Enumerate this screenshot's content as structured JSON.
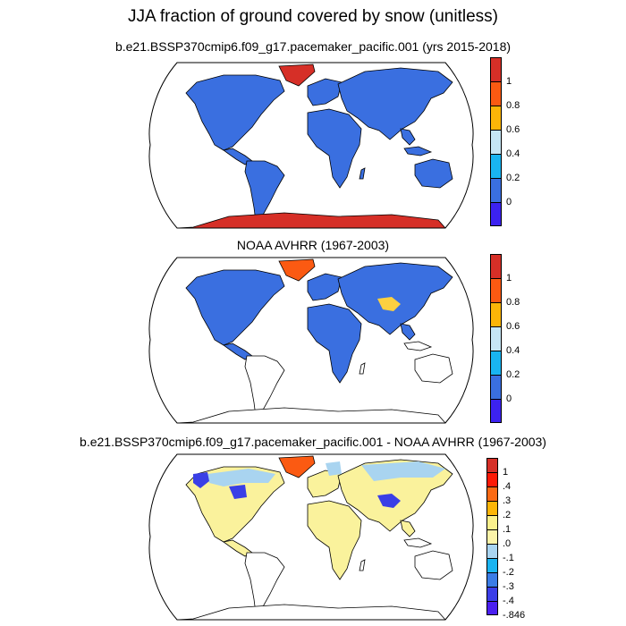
{
  "title": "JJA fraction of ground covered by snow (unitless)",
  "panels": [
    {
      "title": "b.e21.BSSP370cmip6.f09_g17.pacemaker_pacific.001 (yrs 2015-2018)",
      "scale_labels": [
        "1",
        "0.8",
        "0.6",
        "0.4",
        "0.2",
        "0"
      ],
      "scale_colors": [
        "#d62f27",
        "#fb5a12",
        "#fcb508",
        "#c6e6f5",
        "#19b4f1",
        "#3a6fe0",
        "#3c22f0"
      ]
    },
    {
      "title": "NOAA AVHRR (1967-2003)",
      "scale_labels": [
        "1",
        "0.8",
        "0.6",
        "0.4",
        "0.2",
        "0"
      ],
      "scale_colors": [
        "#d62f27",
        "#fb5a12",
        "#fcb508",
        "#c6e6f5",
        "#19b4f1",
        "#3a6fe0",
        "#3c22f0"
      ]
    },
    {
      "title": "b.e21.BSSP370cmip6.f09_g17.pacemaker_pacific.001 - NOAA AVHRR (1967-2003)",
      "scale_labels": [
        "1",
        ".4",
        ".3",
        ".2",
        ".1",
        ".0",
        "-.1",
        "-.2",
        "-.3",
        "-.4",
        "-.846"
      ],
      "scale_colors": [
        "#d62f27",
        "#fd1a06",
        "#fb6a14",
        "#fcb508",
        "#faf08c",
        "#fbf3a8",
        "#a9d4f0",
        "#1ab4f1",
        "#3a7ce6",
        "#3b3ee8",
        "#4a1ff0"
      ]
    }
  ],
  "colors": {
    "ocean": "#ffffff",
    "land_empty": "#ffffff",
    "coast": "#000000",
    "snow_low": "#3a6fe0",
    "snow_high": "#d62f27",
    "snow_mid": "#fb5a12",
    "diff_neutral": "#faf29c",
    "diff_neg": "#a9d4f0",
    "diff_strong_neg": "#3a3fe6",
    "diff_pos": "#fb5a12"
  }
}
